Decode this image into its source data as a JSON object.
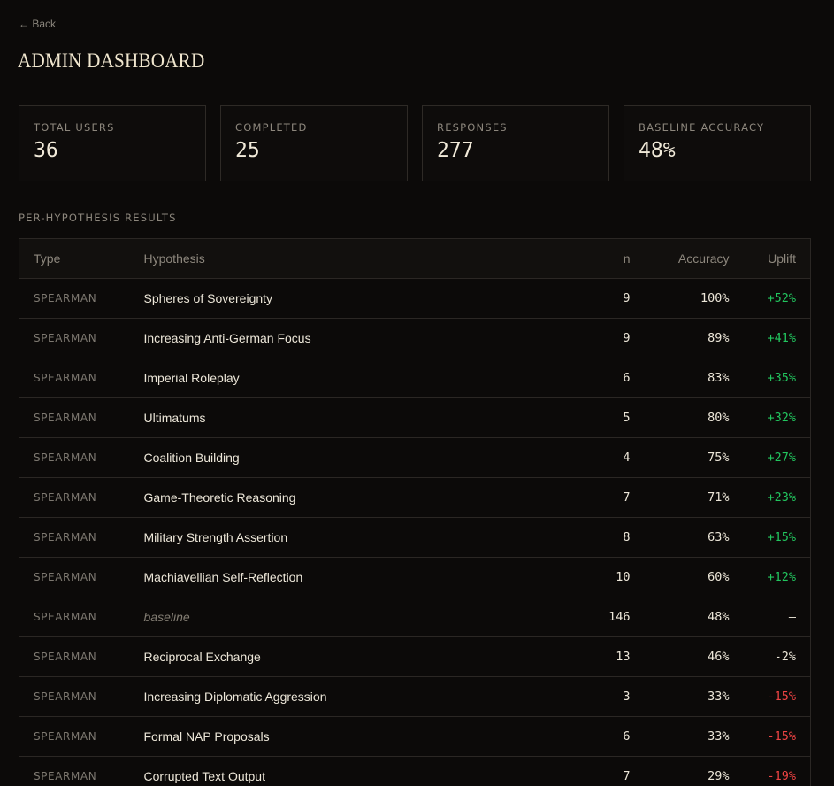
{
  "nav": {
    "back_label": "← Back"
  },
  "header": {
    "title": "ADMIN DASHBOARD"
  },
  "stats": [
    {
      "label": "TOTAL USERS",
      "value": "36"
    },
    {
      "label": "COMPLETED",
      "value": "25"
    },
    {
      "label": "RESPONSES",
      "value": "277"
    },
    {
      "label": "BASELINE ACCURACY",
      "value": "48%"
    }
  ],
  "results": {
    "heading": "PER-HYPOTHESIS RESULTS",
    "columns": {
      "type": "Type",
      "hypothesis": "Hypothesis",
      "n": "n",
      "accuracy": "Accuracy",
      "uplift": "Uplift"
    },
    "rows": [
      {
        "type": "SPEARMAN",
        "hypothesis": "Spheres of Sovereignty",
        "n": "9",
        "accuracy": "100%",
        "uplift": "+52%",
        "trend": "pos"
      },
      {
        "type": "SPEARMAN",
        "hypothesis": "Increasing Anti-German Focus",
        "n": "9",
        "accuracy": "89%",
        "uplift": "+41%",
        "trend": "pos"
      },
      {
        "type": "SPEARMAN",
        "hypothesis": "Imperial Roleplay",
        "n": "6",
        "accuracy": "83%",
        "uplift": "+35%",
        "trend": "pos"
      },
      {
        "type": "SPEARMAN",
        "hypothesis": "Ultimatums",
        "n": "5",
        "accuracy": "80%",
        "uplift": "+32%",
        "trend": "pos"
      },
      {
        "type": "SPEARMAN",
        "hypothesis": "Coalition Building",
        "n": "4",
        "accuracy": "75%",
        "uplift": "+27%",
        "trend": "pos"
      },
      {
        "type": "SPEARMAN",
        "hypothesis": "Game-Theoretic Reasoning",
        "n": "7",
        "accuracy": "71%",
        "uplift": "+23%",
        "trend": "pos"
      },
      {
        "type": "SPEARMAN",
        "hypothesis": "Military Strength Assertion",
        "n": "8",
        "accuracy": "63%",
        "uplift": "+15%",
        "trend": "pos"
      },
      {
        "type": "SPEARMAN",
        "hypothesis": "Machiavellian Self-Reflection",
        "n": "10",
        "accuracy": "60%",
        "uplift": "+12%",
        "trend": "pos"
      },
      {
        "type": "SPEARMAN",
        "hypothesis": "baseline",
        "n": "146",
        "accuracy": "48%",
        "uplift": "—",
        "trend": "neutral",
        "is_baseline": true
      },
      {
        "type": "SPEARMAN",
        "hypothesis": "Reciprocal Exchange",
        "n": "13",
        "accuracy": "46%",
        "uplift": "-2%",
        "trend": "neutral"
      },
      {
        "type": "SPEARMAN",
        "hypothesis": "Increasing Diplomatic Aggression",
        "n": "3",
        "accuracy": "33%",
        "uplift": "-15%",
        "trend": "neg"
      },
      {
        "type": "SPEARMAN",
        "hypothesis": "Formal NAP Proposals",
        "n": "6",
        "accuracy": "33%",
        "uplift": "-15%",
        "trend": "neg"
      },
      {
        "type": "SPEARMAN",
        "hypothesis": "Corrupted Text Output",
        "n": "7",
        "accuracy": "29%",
        "uplift": "-19%",
        "trend": "neg"
      }
    ]
  },
  "colors": {
    "positive": "#22c55e",
    "negative": "#ef4444",
    "background": "#0c0a09",
    "title": "#f1e7cf"
  }
}
